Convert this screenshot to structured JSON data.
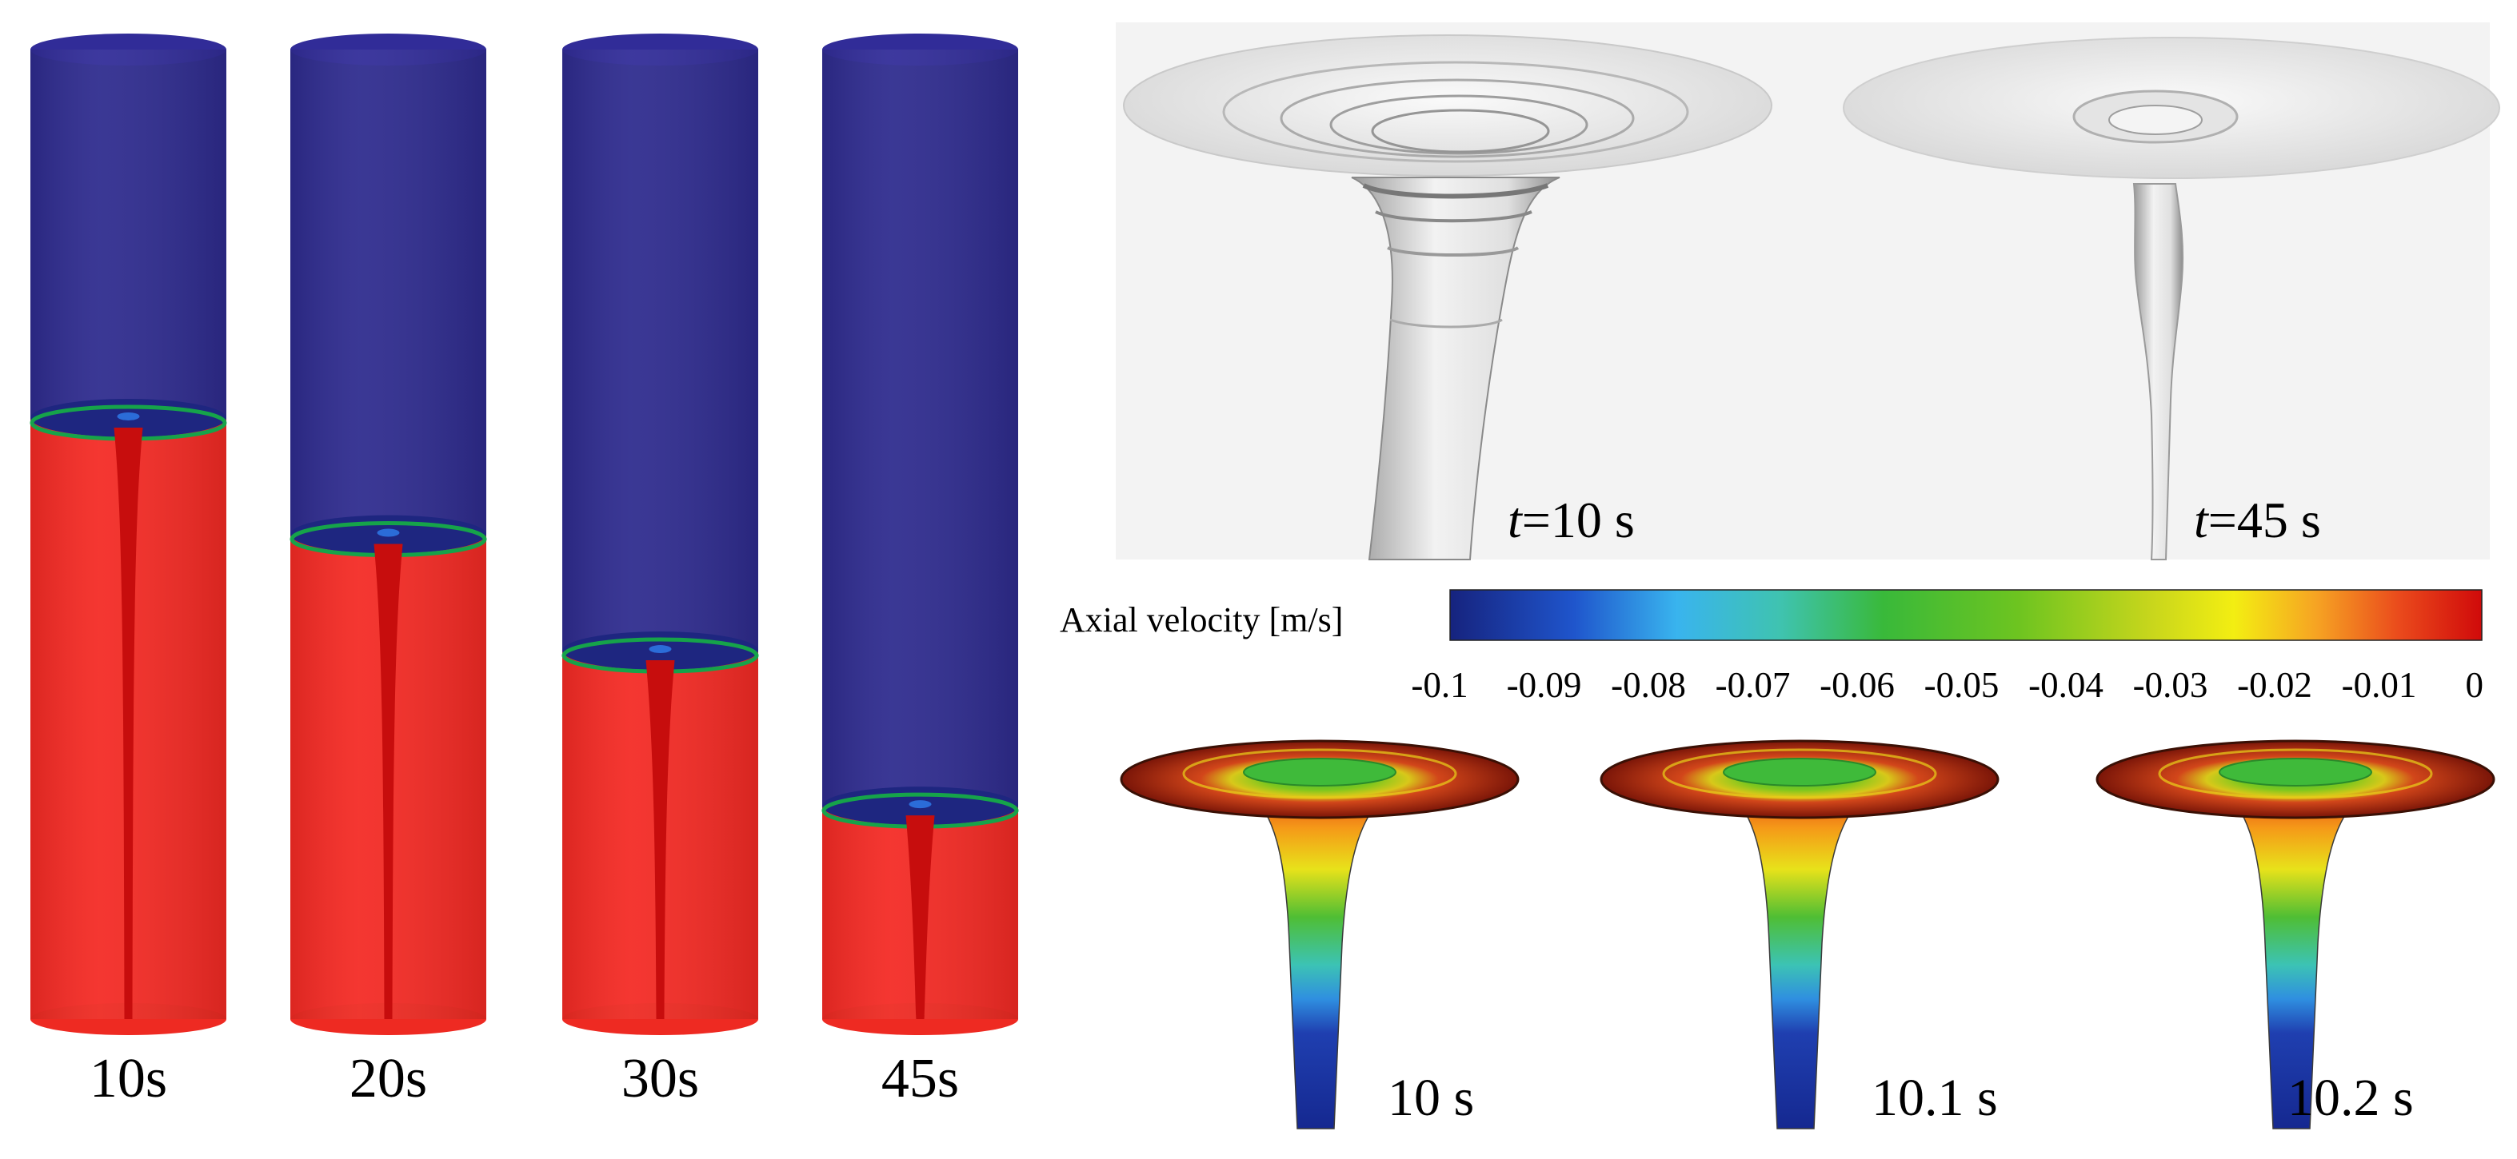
{
  "cylinders": [
    {
      "label": "10s",
      "water_level_fraction": 0.62
    },
    {
      "label": "20s",
      "water_level_fraction": 0.5
    },
    {
      "label": "30s",
      "water_level_fraction": 0.38
    },
    {
      "label": "45s",
      "water_level_fraction": 0.22
    }
  ],
  "surface_views": [
    {
      "t_prefix": "t",
      "t_suffix": "=10 s"
    },
    {
      "t_prefix": "t",
      "t_suffix": "=45 s"
    }
  ],
  "colorbar": {
    "title": "Axial velocity [m/s]",
    "ticks": [
      "-0.1",
      "-0.09",
      "-0.08",
      "-0.07",
      "-0.06",
      "-0.05",
      "-0.04",
      "-0.03",
      "-0.02",
      "-0.01",
      "0"
    ],
    "colors": [
      "#1a2a8c",
      "#1f6fe0",
      "#3fb8f0",
      "#40c8a0",
      "#3fba3a",
      "#7cc71e",
      "#c8d81a",
      "#f5f010",
      "#f5a020",
      "#e83a1a",
      "#d40c0c"
    ]
  },
  "vortex_views": [
    {
      "label": "10 s"
    },
    {
      "label": "10.1 s"
    },
    {
      "label": "10.2 s"
    }
  ],
  "colors": {
    "air": "#2e2b8e",
    "water": "#f42a24",
    "core": "#c70d0d",
    "interface": "#16a34a"
  }
}
